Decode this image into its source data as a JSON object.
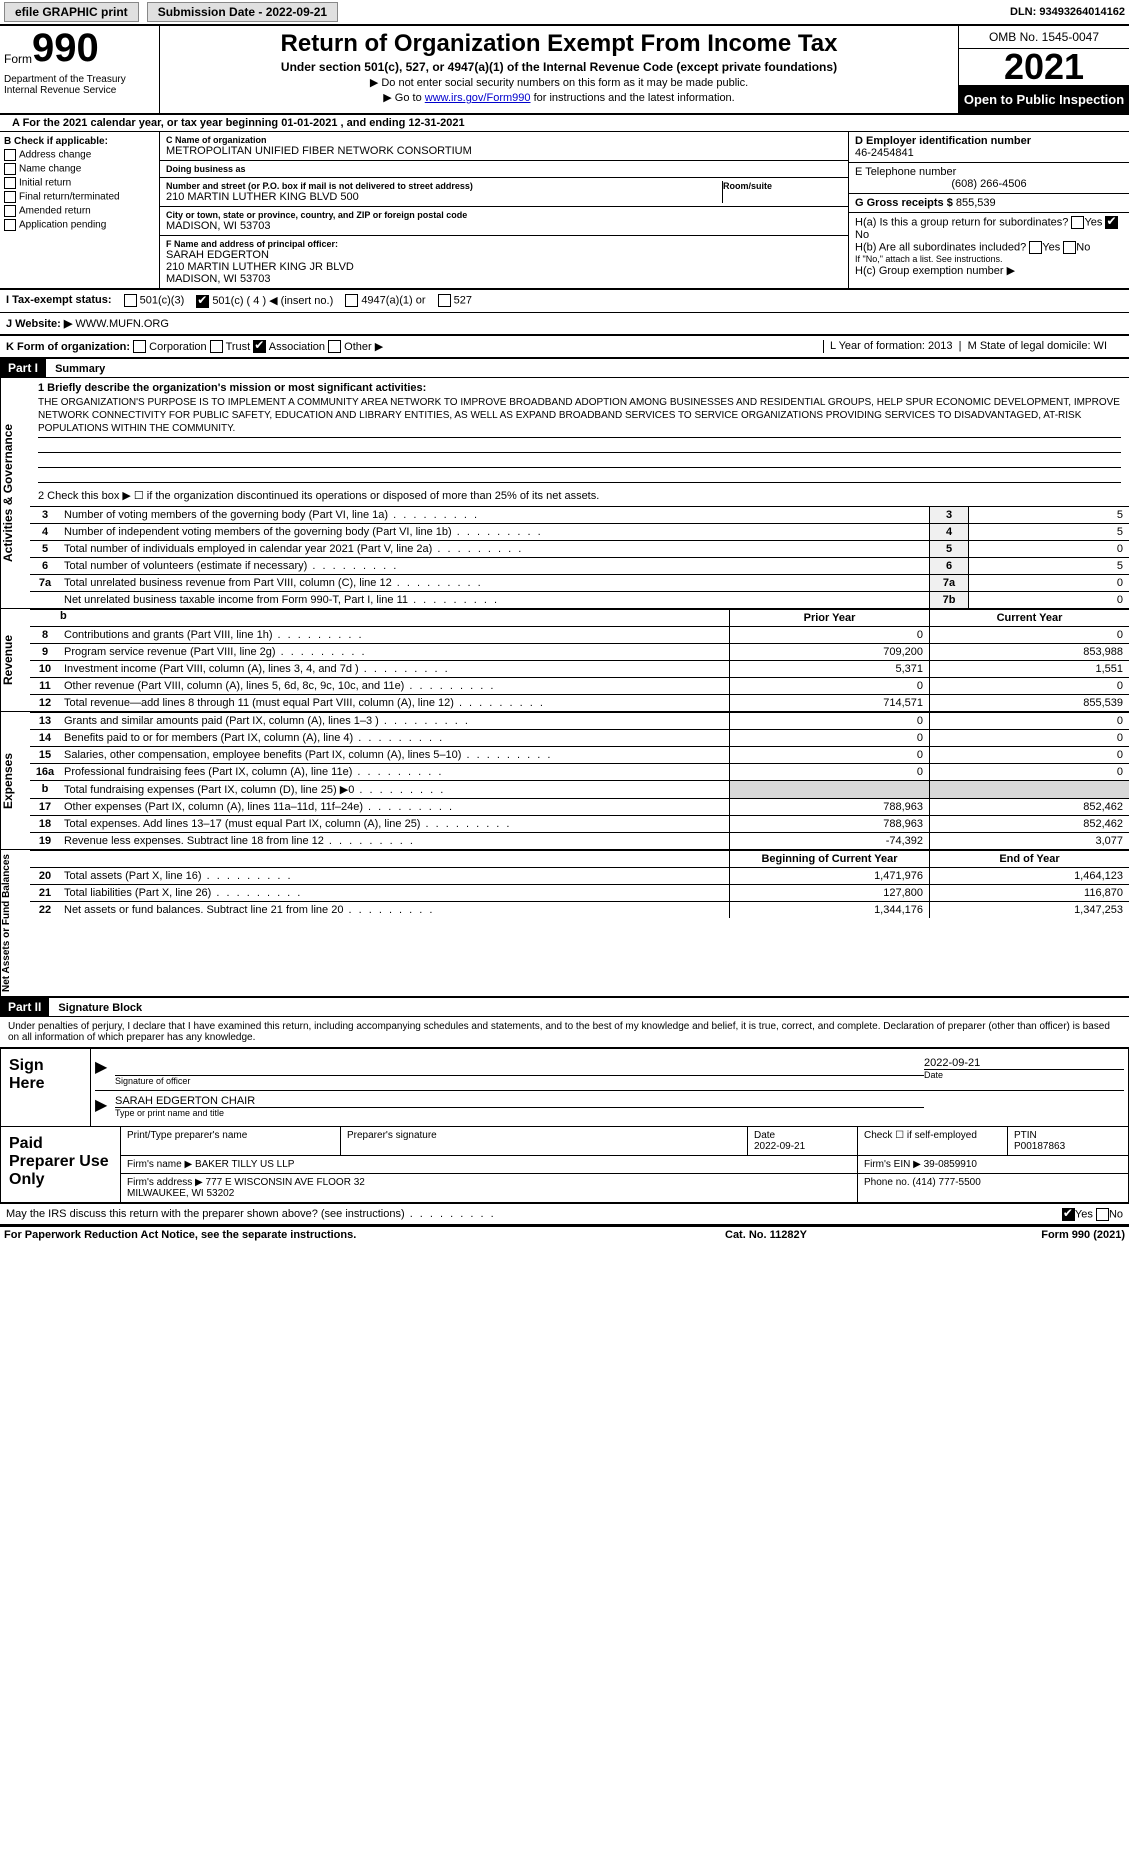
{
  "top": {
    "efile": "efile GRAPHIC print",
    "submission_label": "Submission Date - 2022-09-21",
    "dln": "DLN: 93493264014162"
  },
  "header": {
    "form_word": "Form",
    "form_num": "990",
    "title": "Return of Organization Exempt From Income Tax",
    "sub": "Under section 501(c), 527, or 4947(a)(1) of the Internal Revenue Code (except private foundations)",
    "note1": "▶ Do not enter social security numbers on this form as it may be made public.",
    "note2_prefix": "▶ Go to ",
    "note2_link": "www.irs.gov/Form990",
    "note2_suffix": " for instructions and the latest information.",
    "dept": "Department of the Treasury\nInternal Revenue Service",
    "omb": "OMB No. 1545-0047",
    "year": "2021",
    "open": "Open to Public Inspection"
  },
  "rowA": "A For the 2021 calendar year, or tax year beginning 01-01-2021   , and ending 12-31-2021",
  "colB": {
    "title": "B Check if applicable:",
    "items": [
      "Address change",
      "Name change",
      "Initial return",
      "Final return/terminated",
      "Amended return",
      "Application pending"
    ]
  },
  "colC": {
    "name_lbl": "C Name of organization",
    "name": "METROPOLITAN UNIFIED FIBER NETWORK CONSORTIUM",
    "dba_lbl": "Doing business as",
    "dba": "",
    "addr_lbl": "Number and street (or P.O. box if mail is not delivered to street address)",
    "addr": "210 MARTIN LUTHER KING BLVD 500",
    "room_lbl": "Room/suite",
    "city_lbl": "City or town, state or province, country, and ZIP or foreign postal code",
    "city": "MADISON, WI  53703",
    "f_lbl": "F Name and address of principal officer:",
    "f_val": "SARAH EDGERTON\n210 MARTIN LUTHER KING JR BLVD\nMADISON, WI  53703"
  },
  "colD": {
    "ein_lbl": "D Employer identification number",
    "ein": "46-2454841",
    "tel_lbl": "E Telephone number",
    "tel": "(608) 266-4506",
    "gross_lbl": "G Gross receipts $",
    "gross": "855,539",
    "ha": "H(a)  Is this a group return for subordinates?",
    "hb": "H(b)  Are all subordinates included?",
    "hb_note": "If \"No,\" attach a list. See instructions.",
    "hc": "H(c)  Group exemption number ▶"
  },
  "rowI": {
    "i": "I   Tax-exempt status:",
    "opts": [
      "501(c)(3)",
      "501(c) ( 4 ) ◀ (insert no.)",
      "4947(a)(1) or",
      "527"
    ]
  },
  "rowJ": {
    "j_lbl": "J   Website: ▶",
    "j_val": "WWW.MUFN.ORG"
  },
  "rowK": {
    "k": "K Form of organization:",
    "opts": [
      "Corporation",
      "Trust",
      "Association",
      "Other ▶"
    ],
    "l": "L Year of formation: 2013",
    "m": "M State of legal domicile: WI"
  },
  "part1": {
    "hdr": "Part I",
    "title": "Summary",
    "side1": "Activities & Governance",
    "line1_lbl": "1  Briefly describe the organization's mission or most significant activities:",
    "mission": "THE ORGANIZATION'S PURPOSE IS TO IMPLEMENT A COMMUNITY AREA NETWORK TO IMPROVE BROADBAND ADOPTION AMONG BUSINESSES AND RESIDENTIAL GROUPS, HELP SPUR ECONOMIC DEVELOPMENT, IMPROVE NETWORK CONNECTIVITY FOR PUBLIC SAFETY, EDUCATION AND LIBRARY ENTITIES, AS WELL AS EXPAND BROADBAND SERVICES TO SERVICE ORGANIZATIONS PROVIDING SERVICES TO DISADVANTAGED, AT-RISK POPULATIONS WITHIN THE COMMUNITY.",
    "line2": "2   Check this box ▶ ☐  if the organization discontinued its operations or disposed of more than 25% of its net assets.",
    "rows": [
      {
        "n": "3",
        "t": "Number of voting members of the governing body (Part VI, line 1a)",
        "nn": "3",
        "v": "5"
      },
      {
        "n": "4",
        "t": "Number of independent voting members of the governing body (Part VI, line 1b)",
        "nn": "4",
        "v": "5"
      },
      {
        "n": "5",
        "t": "Total number of individuals employed in calendar year 2021 (Part V, line 2a)",
        "nn": "5",
        "v": "0"
      },
      {
        "n": "6",
        "t": "Total number of volunteers (estimate if necessary)",
        "nn": "6",
        "v": "5"
      },
      {
        "n": "7a",
        "t": "Total unrelated business revenue from Part VIII, column (C), line 12",
        "nn": "7a",
        "v": "0"
      },
      {
        "n": "",
        "t": "Net unrelated business taxable income from Form 990-T, Part I, line 11",
        "nn": "7b",
        "v": "0"
      }
    ],
    "side2": "Revenue",
    "hdr2": {
      "b": "b",
      "prior": "Prior Year",
      "curr": "Current Year"
    },
    "rev": [
      {
        "n": "8",
        "t": "Contributions and grants (Part VIII, line 1h)",
        "c1": "0",
        "c2": "0"
      },
      {
        "n": "9",
        "t": "Program service revenue (Part VIII, line 2g)",
        "c1": "709,200",
        "c2": "853,988"
      },
      {
        "n": "10",
        "t": "Investment income (Part VIII, column (A), lines 3, 4, and 7d )",
        "c1": "5,371",
        "c2": "1,551"
      },
      {
        "n": "11",
        "t": "Other revenue (Part VIII, column (A), lines 5, 6d, 8c, 9c, 10c, and 11e)",
        "c1": "0",
        "c2": "0"
      },
      {
        "n": "12",
        "t": "Total revenue—add lines 8 through 11 (must equal Part VIII, column (A), line 12)",
        "c1": "714,571",
        "c2": "855,539"
      }
    ],
    "side3": "Expenses",
    "exp": [
      {
        "n": "13",
        "t": "Grants and similar amounts paid (Part IX, column (A), lines 1–3 )",
        "c1": "0",
        "c2": "0"
      },
      {
        "n": "14",
        "t": "Benefits paid to or for members (Part IX, column (A), line 4)",
        "c1": "0",
        "c2": "0"
      },
      {
        "n": "15",
        "t": "Salaries, other compensation, employee benefits (Part IX, column (A), lines 5–10)",
        "c1": "0",
        "c2": "0"
      },
      {
        "n": "16a",
        "t": "Professional fundraising fees (Part IX, column (A), line 11e)",
        "c1": "0",
        "c2": "0"
      },
      {
        "n": "b",
        "t": "Total fundraising expenses (Part IX, column (D), line 25) ▶0",
        "c1": "",
        "c2": "",
        "shade": true
      },
      {
        "n": "17",
        "t": "Other expenses (Part IX, column (A), lines 11a–11d, 11f–24e)",
        "c1": "788,963",
        "c2": "852,462"
      },
      {
        "n": "18",
        "t": "Total expenses. Add lines 13–17 (must equal Part IX, column (A), line 25)",
        "c1": "788,963",
        "c2": "852,462"
      },
      {
        "n": "19",
        "t": "Revenue less expenses. Subtract line 18 from line 12",
        "c1": "-74,392",
        "c2": "3,077"
      }
    ],
    "side4": "Net Assets or Fund Balances",
    "hdr4": {
      "prior": "Beginning of Current Year",
      "curr": "End of Year"
    },
    "nab": [
      {
        "n": "20",
        "t": "Total assets (Part X, line 16)",
        "c1": "1,471,976",
        "c2": "1,464,123"
      },
      {
        "n": "21",
        "t": "Total liabilities (Part X, line 26)",
        "c1": "127,800",
        "c2": "116,870"
      },
      {
        "n": "22",
        "t": "Net assets or fund balances. Subtract line 21 from line 20",
        "c1": "1,344,176",
        "c2": "1,347,253"
      }
    ]
  },
  "part2": {
    "hdr": "Part II",
    "title": "Signature Block",
    "decl": "Under penalties of perjury, I declare that I have examined this return, including accompanying schedules and statements, and to the best of my knowledge and belief, it is true, correct, and complete. Declaration of preparer (other than officer) is based on all information of which preparer has any knowledge.",
    "sign_here": "Sign Here",
    "sig_off": "Signature of officer",
    "sig_date": "2022-09-21",
    "sig_date_lbl": "Date",
    "sig_name": "SARAH EDGERTON CHAIR",
    "sig_name_lbl": "Type or print name and title",
    "paid": "Paid Preparer Use Only",
    "prep_name_lbl": "Print/Type preparer's name",
    "prep_sig_lbl": "Preparer's signature",
    "prep_date_lbl": "Date",
    "prep_date": "2022-09-21",
    "prep_self": "Check ☐ if self-employed",
    "ptin_lbl": "PTIN",
    "ptin": "P00187863",
    "firm_name_lbl": "Firm's name    ▶",
    "firm_name": "BAKER TILLY US LLP",
    "firm_ein_lbl": "Firm's EIN ▶",
    "firm_ein": "39-0859910",
    "firm_addr_lbl": "Firm's address ▶",
    "firm_addr": "777 E WISCONSIN AVE FLOOR 32\nMILWAUKEE, WI  53202",
    "phone_lbl": "Phone no.",
    "phone": "(414) 777-5500",
    "discuss": "May the IRS discuss this return with the preparer shown above? (see instructions)",
    "yes": "Yes",
    "no": "No"
  },
  "footer": {
    "pra": "For Paperwork Reduction Act Notice, see the separate instructions.",
    "cat": "Cat. No. 11282Y",
    "form": "Form 990 (2021)"
  }
}
